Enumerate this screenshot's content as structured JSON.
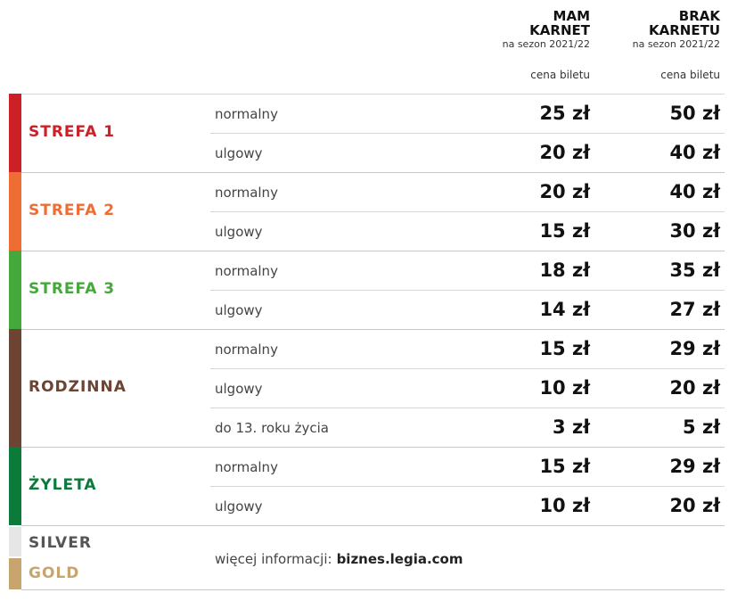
{
  "header": {
    "columns": [
      {
        "title_lines": [
          "MAM",
          "KARNET"
        ],
        "subtitle": "na sezon 2021/22",
        "price_label": "cena biletu"
      },
      {
        "title_lines": [
          "BRAK",
          "KARNETU"
        ],
        "subtitle": "na sezon 2021/22",
        "price_label": "cena biletu"
      }
    ]
  },
  "zones": [
    {
      "name": "STREFA 1",
      "color": "#cc1f26",
      "rows": [
        {
          "type": "normalny",
          "prices": [
            "25 zł",
            "50 zł"
          ]
        },
        {
          "type": "ulgowy",
          "prices": [
            "20 zł",
            "40 zł"
          ]
        }
      ]
    },
    {
      "name": "STREFA 2",
      "color": "#ee6d35",
      "rows": [
        {
          "type": "normalny",
          "prices": [
            "20 zł",
            "40 zł"
          ]
        },
        {
          "type": "ulgowy",
          "prices": [
            "15 zł",
            "30 zł"
          ]
        }
      ]
    },
    {
      "name": "STREFA 3",
      "color": "#45a83a",
      "rows": [
        {
          "type": "normalny",
          "prices": [
            "18 zł",
            "35 zł"
          ]
        },
        {
          "type": "ulgowy",
          "prices": [
            "14 zł",
            "27 zł"
          ]
        }
      ]
    },
    {
      "name": "RODZINNA",
      "color": "#6b4433",
      "rows": [
        {
          "type": "normalny",
          "prices": [
            "15 zł",
            "29 zł"
          ]
        },
        {
          "type": "ulgowy",
          "prices": [
            "10 zł",
            "20 zł"
          ]
        },
        {
          "type": "do 13. roku życia",
          "prices": [
            "3 zł",
            "5 zł"
          ]
        }
      ]
    },
    {
      "name": "ŻYLETA",
      "color": "#0b7a3a",
      "rows": [
        {
          "type": "normalny",
          "prices": [
            "15 zł",
            "29 zł"
          ]
        },
        {
          "type": "ulgowy",
          "prices": [
            "10 zł",
            "20 zł"
          ]
        }
      ]
    }
  ],
  "footer": {
    "silver": "SILVER",
    "silver_color": "#e6e6e6",
    "gold": "GOLD",
    "gold_color": "#c8a56e",
    "info_text": "więcej informacji:",
    "info_link": "biznes.legia.com"
  }
}
